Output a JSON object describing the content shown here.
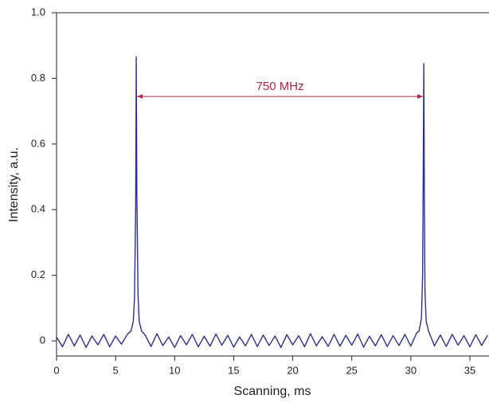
{
  "chart_data": {
    "type": "line",
    "xlabel": "Scanning, ms",
    "ylabel": "Intensity, a.u.",
    "xlim": [
      0,
      36.62
    ],
    "ylim": [
      -0.046,
      1.0
    ],
    "xticks": [
      0,
      5,
      10,
      15,
      20,
      25,
      30,
      35
    ],
    "yticks": [
      0,
      0.2,
      0.4,
      0.6,
      0.8,
      {
        "value": 1.0,
        "label": "1.0"
      }
    ],
    "series": [
      {
        "color": "#2b3090",
        "x": [
          0,
          0.5,
          1,
          1.5,
          2,
          2.5,
          3,
          3.5,
          4,
          4.5,
          5,
          5.5,
          6,
          6.3,
          6.5,
          6.6,
          6.7,
          6.75,
          6.8,
          6.9,
          7,
          7.2,
          7.5,
          8,
          8.5,
          9,
          9.5,
          10,
          10.5,
          11,
          11.5,
          12,
          12.5,
          13,
          13.5,
          14,
          14.5,
          15,
          15.5,
          16,
          16.5,
          17,
          17.5,
          18,
          18.5,
          19,
          19.5,
          20,
          20.5,
          21,
          21.5,
          22,
          22.5,
          23,
          23.5,
          24,
          24.5,
          25,
          25.5,
          26,
          26.5,
          27,
          27.5,
          28,
          28.5,
          29,
          29.5,
          30,
          30.5,
          30.7,
          30.9,
          31,
          31.05,
          31.1,
          31.15,
          31.2,
          31.3,
          31.5,
          32,
          32.5,
          33,
          33.5,
          34,
          34.5,
          35,
          35.5,
          36,
          36.5
        ],
        "values": [
          0.012,
          -0.018,
          0.02,
          -0.015,
          0.018,
          -0.02,
          0.015,
          -0.012,
          0.02,
          -0.018,
          0.015,
          -0.01,
          0.02,
          0.03,
          0.06,
          0.13,
          0.4,
          0.865,
          0.45,
          0.14,
          0.06,
          0.03,
          0.018,
          -0.017,
          0.022,
          -0.014,
          0.012,
          -0.02,
          0.016,
          -0.012,
          0.02,
          -0.018,
          0.014,
          -0.016,
          0.021,
          -0.013,
          0.017,
          -0.019,
          0.012,
          -0.015,
          0.02,
          -0.017,
          0.018,
          -0.014,
          0.015,
          -0.02,
          0.019,
          -0.012,
          0.016,
          -0.018,
          0.022,
          -0.015,
          0.013,
          -0.017,
          0.02,
          -0.016,
          0.017,
          -0.013,
          0.021,
          -0.019,
          0.014,
          -0.015,
          0.019,
          -0.017,
          0.016,
          -0.014,
          0.02,
          -0.016,
          0.025,
          0.03,
          0.07,
          0.2,
          0.5,
          0.845,
          0.42,
          0.15,
          0.06,
          0.03,
          -0.015,
          0.018,
          -0.017,
          0.02,
          -0.013,
          0.016,
          -0.018,
          0.019,
          -0.014,
          0.017
        ]
      }
    ],
    "annotation": {
      "text": "750 MHz",
      "x1": 6.75,
      "x2": 31.1,
      "y": 0.745,
      "color": "#b5203a"
    }
  }
}
